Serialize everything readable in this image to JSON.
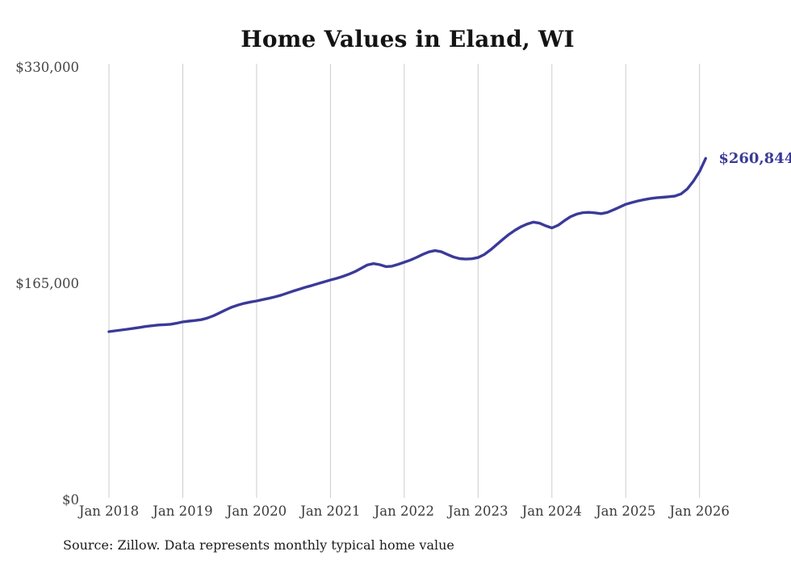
{
  "title": "Home Values in Eland, WI",
  "source_note": "Source: Zillow. Data represents monthly typical home value",
  "end_label": "$260,844",
  "colors": {
    "line": "#3a3a99",
    "gridline": "#cccccc",
    "title_text": "#141414",
    "axis_text": "#454545",
    "source_text": "#1c1c1c"
  },
  "chart_data": {
    "type": "line",
    "title": "Home Values in Eland, WI",
    "interval": "monthly",
    "x_start": "Jan 2018",
    "x_end": "Feb 2026",
    "x_tick_labels": [
      "Jan 2018",
      "Jan 2019",
      "Jan 2020",
      "Jan 2021",
      "Jan 2022",
      "Jan 2023",
      "Jan 2024",
      "Jan 2025",
      "Jan 2026"
    ],
    "y_tick_labels": [
      "$0",
      "$165,000",
      "$330,000"
    ],
    "y_tick_values": [
      0,
      165000,
      330000
    ],
    "ylim": [
      0,
      330000
    ],
    "grid": "vertical-only",
    "legend": "none",
    "last_point_label": "$260,844",
    "series": [
      {
        "name": "Typical home value",
        "values": [
          128700,
          129300,
          129900,
          130500,
          131200,
          131900,
          132600,
          133200,
          133700,
          134000,
          134300,
          135100,
          136100,
          136700,
          137200,
          137800,
          139000,
          140800,
          143000,
          145300,
          147400,
          149000,
          150300,
          151300,
          152100,
          153100,
          154100,
          155200,
          156500,
          158100,
          159700,
          161200,
          162600,
          163900,
          165300,
          166700,
          168100,
          169300,
          170800,
          172500,
          174500,
          177000,
          179500,
          180600,
          179800,
          178300,
          178600,
          180000,
          181600,
          183300,
          185300,
          187600,
          189500,
          190500,
          189700,
          187600,
          185600,
          184400,
          184000,
          184300,
          185200,
          187500,
          191000,
          195000,
          199000,
          202800,
          206000,
          208800,
          210800,
          212200,
          211400,
          209400,
          207800,
          209800,
          213200,
          216300,
          218300,
          219400,
          219700,
          219300,
          218700,
          219600,
          221600,
          223700,
          225800,
          227200,
          228400,
          229400,
          230200,
          230800,
          231200,
          231600,
          232100,
          233800,
          237500,
          243500,
          250800,
          260844
        ]
      }
    ]
  }
}
